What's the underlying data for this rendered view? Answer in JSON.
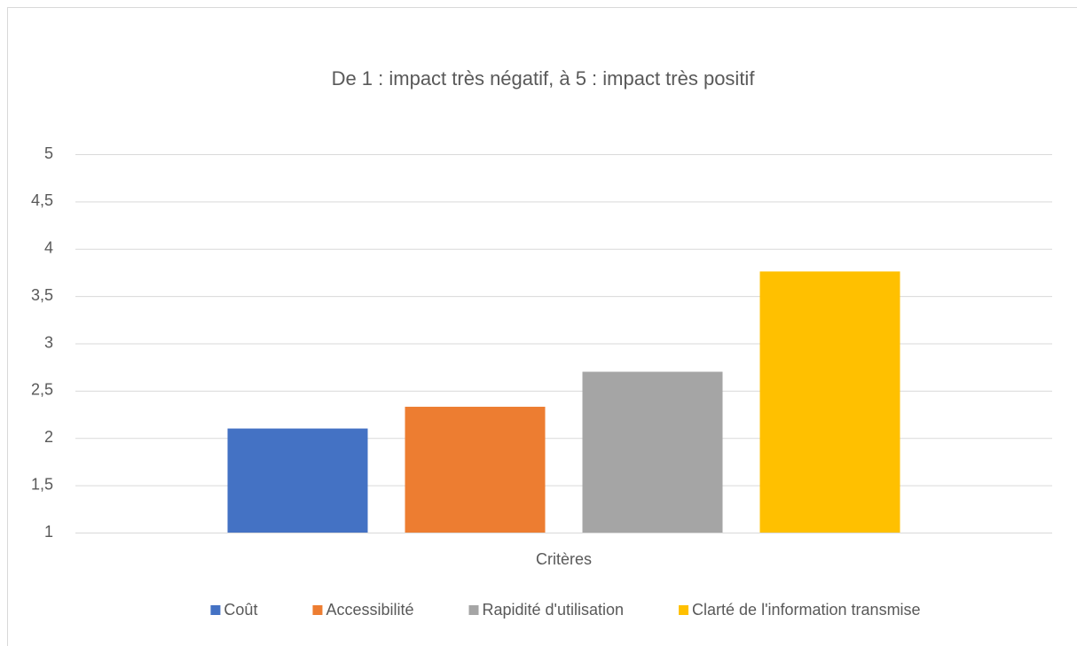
{
  "chart_data": {
    "type": "bar",
    "title": "De 1 : impact très négatif, à 5 : impact très positif",
    "categories": [
      "Critères"
    ],
    "series": [
      {
        "name": "Coût",
        "color": "#4472c4",
        "values": [
          2.1
        ]
      },
      {
        "name": "Accessibilité",
        "color": "#ed7d31",
        "values": [
          2.33
        ]
      },
      {
        "name": "Rapidité d'utilisation",
        "color": "#a5a5a5",
        "values": [
          2.7
        ]
      },
      {
        "name": "Clarté de l'information transmise",
        "color": "#ffc000",
        "values": [
          3.76
        ]
      }
    ],
    "ylim": [
      1,
      5
    ],
    "yticks": [
      1,
      {
        "value": 1.5,
        "label": "1,5"
      },
      2,
      {
        "value": 2.5,
        "label": "2,5"
      },
      3,
      {
        "value": 3.5,
        "label": "3,5"
      },
      4,
      {
        "value": 4.5,
        "label": "4,5"
      },
      5
    ],
    "grid": true,
    "legend": "bottom"
  }
}
